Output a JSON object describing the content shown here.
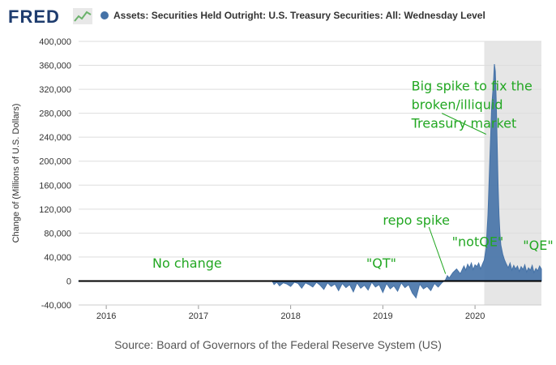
{
  "header": {
    "logo": "FRED",
    "series_title": "Assets: Securities Held Outright: U.S. Treasury Securities: All: Wednesday Level"
  },
  "source": "Source: Board of Governors of the Federal Reserve System (US)",
  "colors": {
    "series": "#4572a7",
    "recession_band": "#e6e6e6",
    "annotation": "#22a722",
    "zero_line": "#000000"
  },
  "chart_data": {
    "type": "area",
    "title": "Assets: Securities Held Outright: U.S. Treasury Securities: All: Wednesday Level",
    "xlabel": "",
    "ylabel": "Change of (Millions of U.S. Dollars)",
    "ylim": [
      -40000,
      400000
    ],
    "xlim": [
      2015.7,
      2020.72
    ],
    "yticks": [
      -40000,
      0,
      40000,
      80000,
      120000,
      160000,
      200000,
      240000,
      280000,
      320000,
      360000,
      400000
    ],
    "ytick_labels": [
      "-40,000",
      "0",
      "40,000",
      "80,000",
      "120,000",
      "160,000",
      "200,000",
      "240,000",
      "280,000",
      "320,000",
      "360,000",
      "400,000"
    ],
    "xtick_labels": [
      "2016",
      "2017",
      "2018",
      "2019",
      "2020"
    ],
    "xticks": [
      2016,
      2017,
      2018,
      2019,
      2020
    ],
    "grid": true,
    "shaded_period": [
      2020.1,
      2020.72
    ],
    "series": [
      {
        "x": [
          2015.7,
          2017.8,
          2017.82,
          2017.85,
          2017.88,
          2017.92,
          2017.96,
          2018.0,
          2018.04,
          2018.08,
          2018.12,
          2018.16,
          2018.2,
          2018.24,
          2018.28,
          2018.32,
          2018.36,
          2018.4,
          2018.44,
          2018.48,
          2018.52,
          2018.56,
          2018.6,
          2018.64,
          2018.68,
          2018.72,
          2018.76,
          2018.8,
          2018.84,
          2018.88,
          2018.92,
          2018.96,
          2019.0,
          2019.04,
          2019.08,
          2019.12,
          2019.16,
          2019.2,
          2019.24,
          2019.28,
          2019.32,
          2019.36,
          2019.4,
          2019.44,
          2019.48,
          2019.52,
          2019.56,
          2019.6,
          2019.64,
          2019.68,
          2019.7,
          2019.72,
          2019.76,
          2019.8,
          2019.84,
          2019.88,
          2019.9,
          2019.92,
          2019.94,
          2019.96,
          2019.98,
          2020.0,
          2020.02,
          2020.04,
          2020.06,
          2020.08,
          2020.1,
          2020.12,
          2020.14,
          2020.16,
          2020.18,
          2020.2,
          2020.21,
          2020.22,
          2020.23,
          2020.24,
          2020.25,
          2020.26,
          2020.27,
          2020.28,
          2020.3,
          2020.32,
          2020.34,
          2020.36,
          2020.38,
          2020.4,
          2020.42,
          2020.44,
          2020.46,
          2020.48,
          2020.5,
          2020.52,
          2020.54,
          2020.56,
          2020.58,
          2020.6,
          2020.62,
          2020.64,
          2020.66,
          2020.68,
          2020.7,
          2020.72
        ],
        "y": [
          0,
          0,
          -6000,
          -2000,
          -8000,
          -3000,
          -5000,
          -9000,
          -2000,
          -4000,
          -12000,
          -3000,
          -6000,
          -10000,
          -2000,
          -7000,
          -14000,
          -3000,
          -9000,
          -5000,
          -16000,
          -4000,
          -11000,
          -6000,
          -18000,
          -3000,
          -12000,
          -7000,
          -15000,
          -2000,
          -10000,
          -6000,
          -19000,
          -4000,
          -13000,
          -8000,
          -17000,
          -3000,
          -11000,
          -6000,
          -20000,
          -28000,
          -5000,
          -13000,
          -9000,
          -16000,
          -4000,
          -10000,
          -3000,
          2000,
          9000,
          5000,
          14000,
          20000,
          12000,
          25000,
          18000,
          28000,
          22000,
          30000,
          19000,
          27000,
          24000,
          30000,
          20000,
          28000,
          35000,
          55000,
          110000,
          200000,
          290000,
          330000,
          362000,
          350000,
          300000,
          230000,
          160000,
          110000,
          80000,
          60000,
          45000,
          35000,
          28000,
          22000,
          30000,
          18000,
          26000,
          20000,
          25000,
          16000,
          24000,
          19000,
          27000,
          15000,
          22000,
          18000,
          26000,
          14000,
          21000,
          17000,
          25000,
          20000
        ]
      }
    ],
    "annotations": [
      {
        "text": "No change",
        "x": 2016.5,
        "y": 22000
      },
      {
        "text": "\"QT\"",
        "x": 2018.82,
        "y": 22000
      },
      {
        "text": "repo spike",
        "x": 2019.0,
        "y": 94000
      },
      {
        "text": "\"notQE\"",
        "x": 2019.75,
        "y": 58000
      },
      {
        "text": "\"QE\"",
        "x": 2020.52,
        "y": 52000
      },
      {
        "text": "Big spike to fix the",
        "x": 2019.31,
        "y": 318000
      },
      {
        "text": "broken/illiquid",
        "x": 2019.31,
        "y": 287000
      },
      {
        "text": "Treasury market",
        "x": 2019.31,
        "y": 256000
      }
    ],
    "pointers": [
      {
        "from": [
          2019.5,
          90000
        ],
        "to": [
          2019.68,
          12000
        ]
      },
      {
        "from": [
          2019.64,
          280000
        ],
        "to": [
          2020.12,
          245000
        ]
      }
    ]
  }
}
